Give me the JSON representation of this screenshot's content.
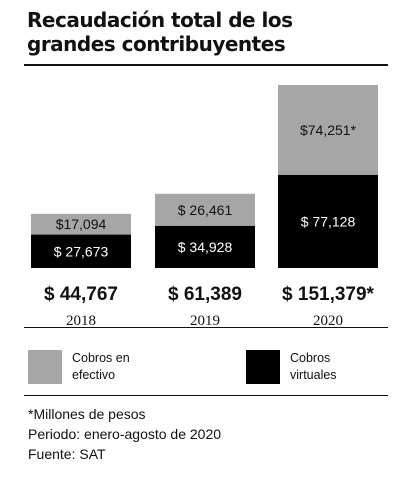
{
  "title": "Recaudación total de los grandes contribuyentes",
  "chart_data": {
    "type": "bar",
    "stacked": true,
    "title": "Recaudación total de los grandes contribuyentes",
    "categories": [
      "2018",
      "2019",
      "2020"
    ],
    "series": [
      {
        "name": "Cobros virtuales",
        "color": "#000000",
        "values": [
          27673,
          34928,
          77128
        ],
        "labels": [
          "$ 27,673",
          "$ 34,928",
          "$ 77,128"
        ]
      },
      {
        "name": "Cobros en efectivo",
        "color": "#a6a6a6",
        "values": [
          17094,
          26461,
          74251
        ],
        "labels": [
          "$17,094",
          "$ 26,461",
          "$74,251*"
        ]
      }
    ],
    "totals": [
      44767,
      61389,
      151379
    ],
    "total_labels": [
      "$ 44,767",
      "$ 61,389",
      "$ 151,379*"
    ],
    "grid": false,
    "legend_position": "bottom"
  },
  "legend": [
    {
      "label": "Cobros en efectivo",
      "color": "#a6a6a6"
    },
    {
      "label": "Cobros virtuales",
      "color": "#000000"
    }
  ],
  "footnotes": [
    "*Millones de pesos",
    "Periodo: enero-agosto de 2020",
    "Fuente: SAT"
  ]
}
